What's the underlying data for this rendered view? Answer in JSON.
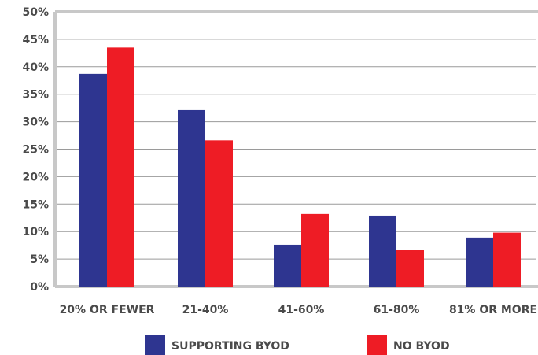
{
  "chart_data": {
    "type": "bar",
    "title": "",
    "xlabel": "",
    "ylabel": "",
    "ylim": [
      0,
      50
    ],
    "yticks": [
      "0%",
      "5%",
      "10%",
      "15%",
      "20%",
      "25%",
      "30%",
      "35%",
      "40%",
      "45%",
      "50%"
    ],
    "categories": [
      "20% OR FEWER",
      "21-40%",
      "41-60%",
      "61-80%",
      "81% OR MORE"
    ],
    "series": [
      {
        "name": "SUPPORTING BYOD",
        "color": "#2e3590",
        "values": [
          38.7,
          32.1,
          7.6,
          12.9,
          8.9
        ]
      },
      {
        "name": "NO BYOD",
        "color": "#ee1c25",
        "values": [
          43.5,
          26.6,
          13.2,
          6.6,
          9.8
        ]
      }
    ],
    "grid": true,
    "legend_position": "bottom-center",
    "colors": {
      "axis": "#c8c8c8",
      "grid": "#9a9a9a",
      "text": "#4a4a4a"
    }
  }
}
